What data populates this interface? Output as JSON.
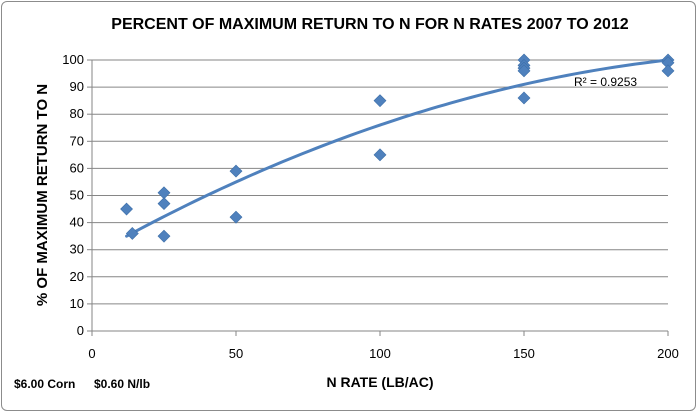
{
  "chart_data": {
    "type": "scatter",
    "title": "PERCENT OF MAXIMUM RETURN TO N FOR N RATES 2007 TO 2012",
    "xlabel": "N RATE (LB/AC)",
    "ylabel": "% OF MAXIMUM RETURN TO N",
    "xlim": [
      0,
      200
    ],
    "ylim": [
      0,
      100
    ],
    "x_ticks": [
      "0",
      "50",
      "100",
      "150",
      "200"
    ],
    "y_ticks": [
      "0",
      "10",
      "20",
      "30",
      "40",
      "50",
      "60",
      "70",
      "80",
      "90",
      "100"
    ],
    "grid": "horizontal",
    "series": [
      {
        "color": "#4f81bd",
        "points": [
          {
            "x": 12,
            "y": 45
          },
          {
            "x": 14,
            "y": 36
          },
          {
            "x": 25,
            "y": 51
          },
          {
            "x": 25,
            "y": 47
          },
          {
            "x": 25,
            "y": 35
          },
          {
            "x": 50,
            "y": 59
          },
          {
            "x": 50,
            "y": 42
          },
          {
            "x": 100,
            "y": 85
          },
          {
            "x": 100,
            "y": 65
          },
          {
            "x": 150,
            "y": 100
          },
          {
            "x": 150,
            "y": 98
          },
          {
            "x": 150,
            "y": 97
          },
          {
            "x": 150,
            "y": 96
          },
          {
            "x": 150,
            "y": 86
          },
          {
            "x": 200,
            "y": 100
          },
          {
            "x": 200,
            "y": 99
          },
          {
            "x": 200,
            "y": 96
          }
        ]
      }
    ],
    "trendline": {
      "type": "polynomial",
      "color": "#4f81bd",
      "x_range": [
        12,
        200
      ],
      "points": [
        {
          "x": 12,
          "y": 35
        },
        {
          "x": 50,
          "y": 55
        },
        {
          "x": 100,
          "y": 76
        },
        {
          "x": 150,
          "y": 91
        },
        {
          "x": 200,
          "y": 100
        }
      ],
      "r_squared_label": "R² = 0.9253"
    }
  },
  "footnote": {
    "corn_price": "$6.00 Corn",
    "n_price": "$0.60 N/lb"
  }
}
